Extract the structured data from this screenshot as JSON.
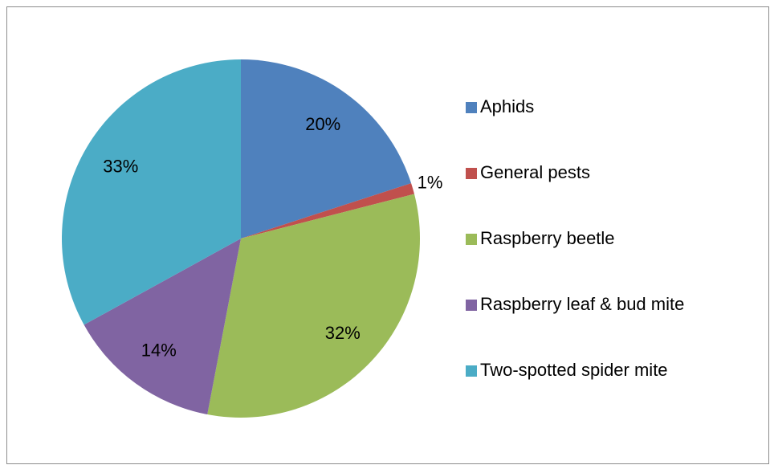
{
  "chart_data": {
    "type": "pie",
    "categories": [
      "Aphids",
      "General pests",
      "Raspberry beetle",
      "Raspberry leaf & bud mite",
      "Two-spotted spider mite"
    ],
    "values": [
      20,
      1,
      32,
      14,
      33
    ],
    "value_labels": [
      "20%",
      "1%",
      "32%",
      "14%",
      "33%"
    ],
    "colors": [
      "#4f81bd",
      "#c0504d",
      "#9bbb59",
      "#8064a2",
      "#4bacc6"
    ],
    "legend": "right"
  }
}
